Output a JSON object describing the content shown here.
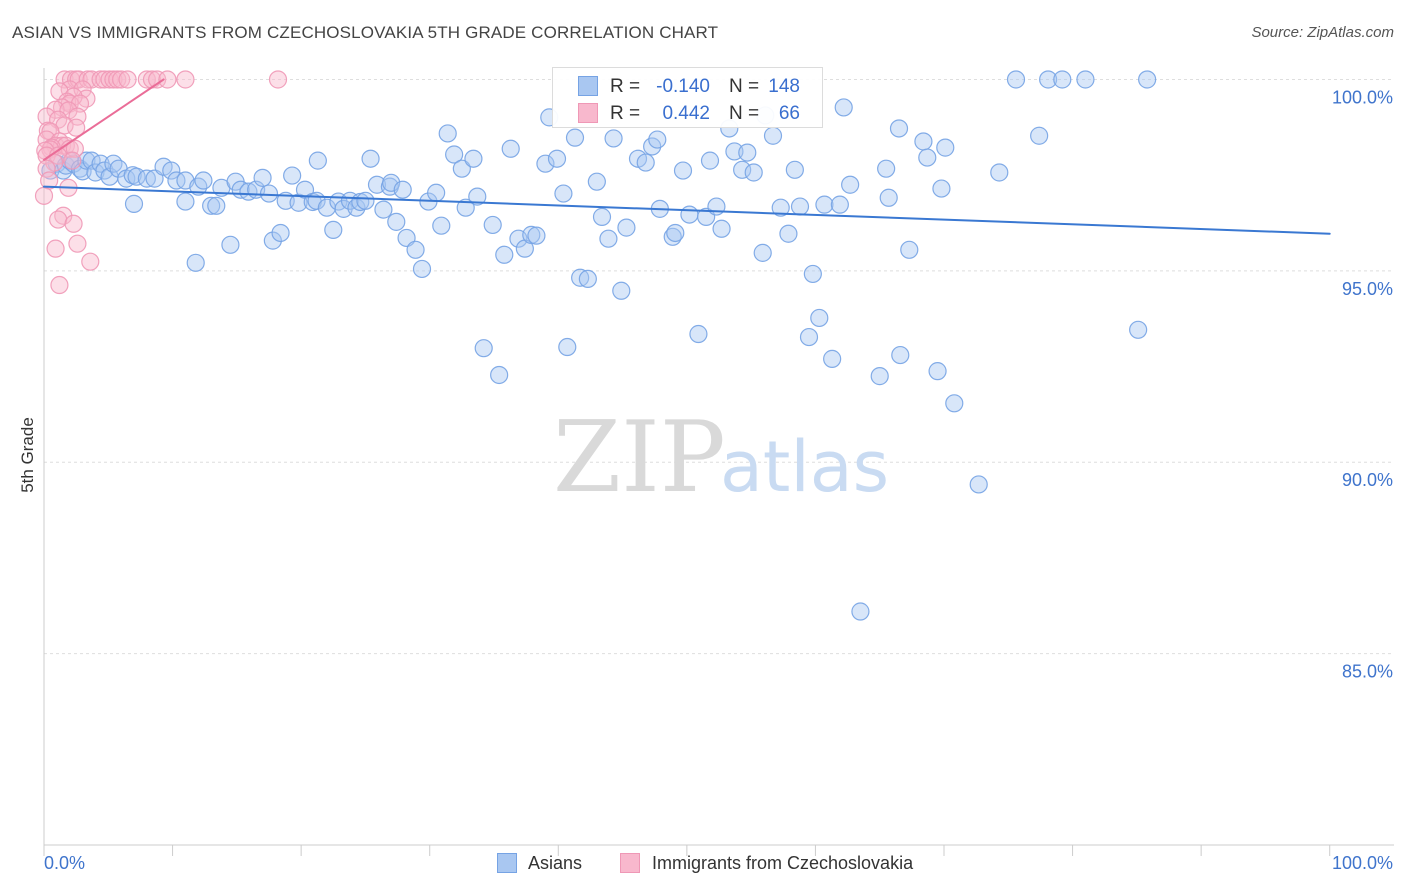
{
  "watermark": {
    "zip": "ZIP",
    "atlas": "atlas"
  },
  "chart_data": {
    "type": "scatter",
    "title": "ASIAN VS IMMIGRANTS FROM CZECHOSLOVAKIA 5TH GRADE CORRELATION CHART",
    "source": "Source: ZipAtlas.com",
    "xlabel": "",
    "ylabel": "5th Grade",
    "xlim": [
      0,
      105
    ],
    "ylim": [
      80,
      100.3
    ],
    "grid": true,
    "legend_position": "bottom",
    "x_ticks": [
      {
        "value": 0,
        "label": "0.0%"
      },
      {
        "value": 100,
        "label": "100.0%"
      }
    ],
    "x_tick_marks": [
      0,
      10,
      20,
      30,
      40,
      50,
      60,
      70,
      80,
      90,
      100
    ],
    "y_ticks": [
      {
        "value": 100,
        "label": "100.0%"
      },
      {
        "value": 95,
        "label": "95.0%"
      },
      {
        "value": 90,
        "label": "90.0%"
      },
      {
        "value": 85,
        "label": "85.0%"
      }
    ],
    "series": [
      {
        "name": "Asians",
        "fill": "#a9c7f1",
        "stroke": "#76a3e4",
        "trend_color": "#3a78d2",
        "r_label": "R =",
        "r": "-0.140",
        "n_label": "N =",
        "n": "148",
        "trendline": [
          [
            0,
            97.2
          ],
          [
            100,
            95.97
          ]
        ],
        "points": [
          [
            0.5,
            97.62
          ],
          [
            1.0,
            97.8
          ],
          [
            1.5,
            97.62
          ],
          [
            1.7,
            97.75
          ],
          [
            2.0,
            97.88
          ],
          [
            2.3,
            97.8
          ],
          [
            2.8,
            97.67
          ],
          [
            3.0,
            97.6
          ],
          [
            3.3,
            97.88
          ],
          [
            3.7,
            97.88
          ],
          [
            4.0,
            97.57
          ],
          [
            4.4,
            97.8
          ],
          [
            4.7,
            97.62
          ],
          [
            5.1,
            97.46
          ],
          [
            5.4,
            97.8
          ],
          [
            5.8,
            97.67
          ],
          [
            6.4,
            97.41
          ],
          [
            6.9,
            97.5
          ],
          [
            7.0,
            96.75
          ],
          [
            7.2,
            97.46
          ],
          [
            8.0,
            97.41
          ],
          [
            8.6,
            97.41
          ],
          [
            9.3,
            97.72
          ],
          [
            9.9,
            97.62
          ],
          [
            10.3,
            97.36
          ],
          [
            11.0,
            97.36
          ],
          [
            11.0,
            96.81
          ],
          [
            11.8,
            95.21
          ],
          [
            12.0,
            97.2
          ],
          [
            12.4,
            97.36
          ],
          [
            13.0,
            96.7
          ],
          [
            13.4,
            96.7
          ],
          [
            13.8,
            97.17
          ],
          [
            14.5,
            95.68
          ],
          [
            14.9,
            97.33
          ],
          [
            15.3,
            97.12
          ],
          [
            15.9,
            97.07
          ],
          [
            16.5,
            97.12
          ],
          [
            17.0,
            97.43
          ],
          [
            17.5,
            97.02
          ],
          [
            17.8,
            95.79
          ],
          [
            18.4,
            95.99
          ],
          [
            18.8,
            96.83
          ],
          [
            19.3,
            97.49
          ],
          [
            19.8,
            96.78
          ],
          [
            20.3,
            97.12
          ],
          [
            20.9,
            96.8
          ],
          [
            21.2,
            96.83
          ],
          [
            21.3,
            97.88
          ],
          [
            22.0,
            96.65
          ],
          [
            22.5,
            96.07
          ],
          [
            22.9,
            96.81
          ],
          [
            23.3,
            96.62
          ],
          [
            23.8,
            96.83
          ],
          [
            24.3,
            96.65
          ],
          [
            24.6,
            96.8
          ],
          [
            25.0,
            96.83
          ],
          [
            25.4,
            97.93
          ],
          [
            25.9,
            97.25
          ],
          [
            26.4,
            96.6
          ],
          [
            26.9,
            97.2
          ],
          [
            27.0,
            97.3
          ],
          [
            27.4,
            96.28
          ],
          [
            27.9,
            97.12
          ],
          [
            28.2,
            95.86
          ],
          [
            28.9,
            95.55
          ],
          [
            29.4,
            95.05
          ],
          [
            29.9,
            96.81
          ],
          [
            30.5,
            97.04
          ],
          [
            30.9,
            96.18
          ],
          [
            31.4,
            98.59
          ],
          [
            31.9,
            98.04
          ],
          [
            32.5,
            97.67
          ],
          [
            32.8,
            96.65
          ],
          [
            33.4,
            97.93
          ],
          [
            33.7,
            96.94
          ],
          [
            34.2,
            92.98
          ],
          [
            34.9,
            96.2
          ],
          [
            35.4,
            92.28
          ],
          [
            35.8,
            95.42
          ],
          [
            36.3,
            98.19
          ],
          [
            36.9,
            95.84
          ],
          [
            37.4,
            95.58
          ],
          [
            37.9,
            95.94
          ],
          [
            38.3,
            95.92
          ],
          [
            39.0,
            97.8
          ],
          [
            39.3,
            99.01
          ],
          [
            39.9,
            97.93
          ],
          [
            40.4,
            97.02
          ],
          [
            40.7,
            93.01
          ],
          [
            41.3,
            98.48
          ],
          [
            41.7,
            94.82
          ],
          [
            42.3,
            94.79
          ],
          [
            43.0,
            97.33
          ],
          [
            43.4,
            96.41
          ],
          [
            43.9,
            95.84
          ],
          [
            44.3,
            98.46
          ],
          [
            44.9,
            94.48
          ],
          [
            45.3,
            96.13
          ],
          [
            46.2,
            97.93
          ],
          [
            46.8,
            97.83
          ],
          [
            47.3,
            98.25
          ],
          [
            47.7,
            98.43
          ],
          [
            47.9,
            96.62
          ],
          [
            48.9,
            95.89
          ],
          [
            49.1,
            95.99
          ],
          [
            49.7,
            97.62
          ],
          [
            50.2,
            96.47
          ],
          [
            50.9,
            93.35
          ],
          [
            51.5,
            96.41
          ],
          [
            51.8,
            97.88
          ],
          [
            52.3,
            96.68
          ],
          [
            52.7,
            96.1
          ],
          [
            53.3,
            98.72
          ],
          [
            53.7,
            98.12
          ],
          [
            54.3,
            97.64
          ],
          [
            54.7,
            98.09
          ],
          [
            55.2,
            97.57
          ],
          [
            55.9,
            95.47
          ],
          [
            56.1,
            99.06
          ],
          [
            56.7,
            98.53
          ],
          [
            57.3,
            96.65
          ],
          [
            57.9,
            95.97
          ],
          [
            58.4,
            97.64
          ],
          [
            58.8,
            96.68
          ],
          [
            59.5,
            93.27
          ],
          [
            59.8,
            94.92
          ],
          [
            60.3,
            93.77
          ],
          [
            60.7,
            96.73
          ],
          [
            61.3,
            92.7
          ],
          [
            61.9,
            96.73
          ],
          [
            62.2,
            99.27
          ],
          [
            62.7,
            97.25
          ],
          [
            63.5,
            86.1
          ],
          [
            65.0,
            92.25
          ],
          [
            65.5,
            97.67
          ],
          [
            65.7,
            96.91
          ],
          [
            66.5,
            98.72
          ],
          [
            66.6,
            92.8
          ],
          [
            67.3,
            95.55
          ],
          [
            68.4,
            98.38
          ],
          [
            68.7,
            97.96
          ],
          [
            69.5,
            92.38
          ],
          [
            69.8,
            97.15
          ],
          [
            70.1,
            98.22
          ],
          [
            70.8,
            91.54
          ],
          [
            72.7,
            89.42
          ],
          [
            74.3,
            97.57
          ],
          [
            75.6,
            100.0
          ],
          [
            77.4,
            98.53
          ],
          [
            78.1,
            100.0
          ],
          [
            79.2,
            100.0
          ],
          [
            81.0,
            100.0
          ],
          [
            85.1,
            93.46
          ],
          [
            85.8,
            100.0
          ]
        ]
      },
      {
        "name": "Immigrants from Czechoslovakia",
        "fill": "#f8b8cd",
        "stroke": "#ef98b6",
        "trend_color": "#ea6d98",
        "r_label": "R =",
        "r": "0.442",
        "n_label": "N =",
        "n": "66",
        "trendline": [
          [
            0,
            97.9
          ],
          [
            9.3,
            100
          ]
        ],
        "points": [
          [
            1.6,
            100
          ],
          [
            2.1,
            100
          ],
          [
            2.5,
            100
          ],
          [
            2.7,
            100
          ],
          [
            3.4,
            100
          ],
          [
            3.7,
            100
          ],
          [
            4.4,
            100
          ],
          [
            4.7,
            100
          ],
          [
            5.1,
            100
          ],
          [
            5.4,
            100
          ],
          [
            5.7,
            100
          ],
          [
            6.0,
            100
          ],
          [
            6.5,
            100
          ],
          [
            8.0,
            100
          ],
          [
            8.4,
            100
          ],
          [
            8.8,
            100
          ],
          [
            9.6,
            100
          ],
          [
            11.0,
            100
          ],
          [
            18.2,
            100
          ],
          [
            2.0,
            99.74
          ],
          [
            3.0,
            99.74
          ],
          [
            1.2,
            99.69
          ],
          [
            3.3,
            99.5
          ],
          [
            2.3,
            99.55
          ],
          [
            1.8,
            99.42
          ],
          [
            2.0,
            99.37
          ],
          [
            2.8,
            99.37
          ],
          [
            1.4,
            99.27
          ],
          [
            0.9,
            99.21
          ],
          [
            1.9,
            99.19
          ],
          [
            2.6,
            99.03
          ],
          [
            0.2,
            99.03
          ],
          [
            1.1,
            98.95
          ],
          [
            1.6,
            98.8
          ],
          [
            2.5,
            98.74
          ],
          [
            0.3,
            98.66
          ],
          [
            0.5,
            98.64
          ],
          [
            0.2,
            98.43
          ],
          [
            1.2,
            98.38
          ],
          [
            0.9,
            98.27
          ],
          [
            1.4,
            98.27
          ],
          [
            1.7,
            98.27
          ],
          [
            0.6,
            98.22
          ],
          [
            2.0,
            98.19
          ],
          [
            2.4,
            98.19
          ],
          [
            0.5,
            98.17
          ],
          [
            0.1,
            98.14
          ],
          [
            0.2,
            98.01
          ],
          [
            1.1,
            98.01
          ],
          [
            2.2,
            97.88
          ],
          [
            0.8,
            97.83
          ],
          [
            0.2,
            97.67
          ],
          [
            0.4,
            97.36
          ],
          [
            1.9,
            97.17
          ],
          [
            0.0,
            96.96
          ],
          [
            1.5,
            96.44
          ],
          [
            1.1,
            96.34
          ],
          [
            2.3,
            96.23
          ],
          [
            2.6,
            95.71
          ],
          [
            0.9,
            95.58
          ],
          [
            3.6,
            95.24
          ],
          [
            1.2,
            94.63
          ]
        ]
      }
    ]
  }
}
